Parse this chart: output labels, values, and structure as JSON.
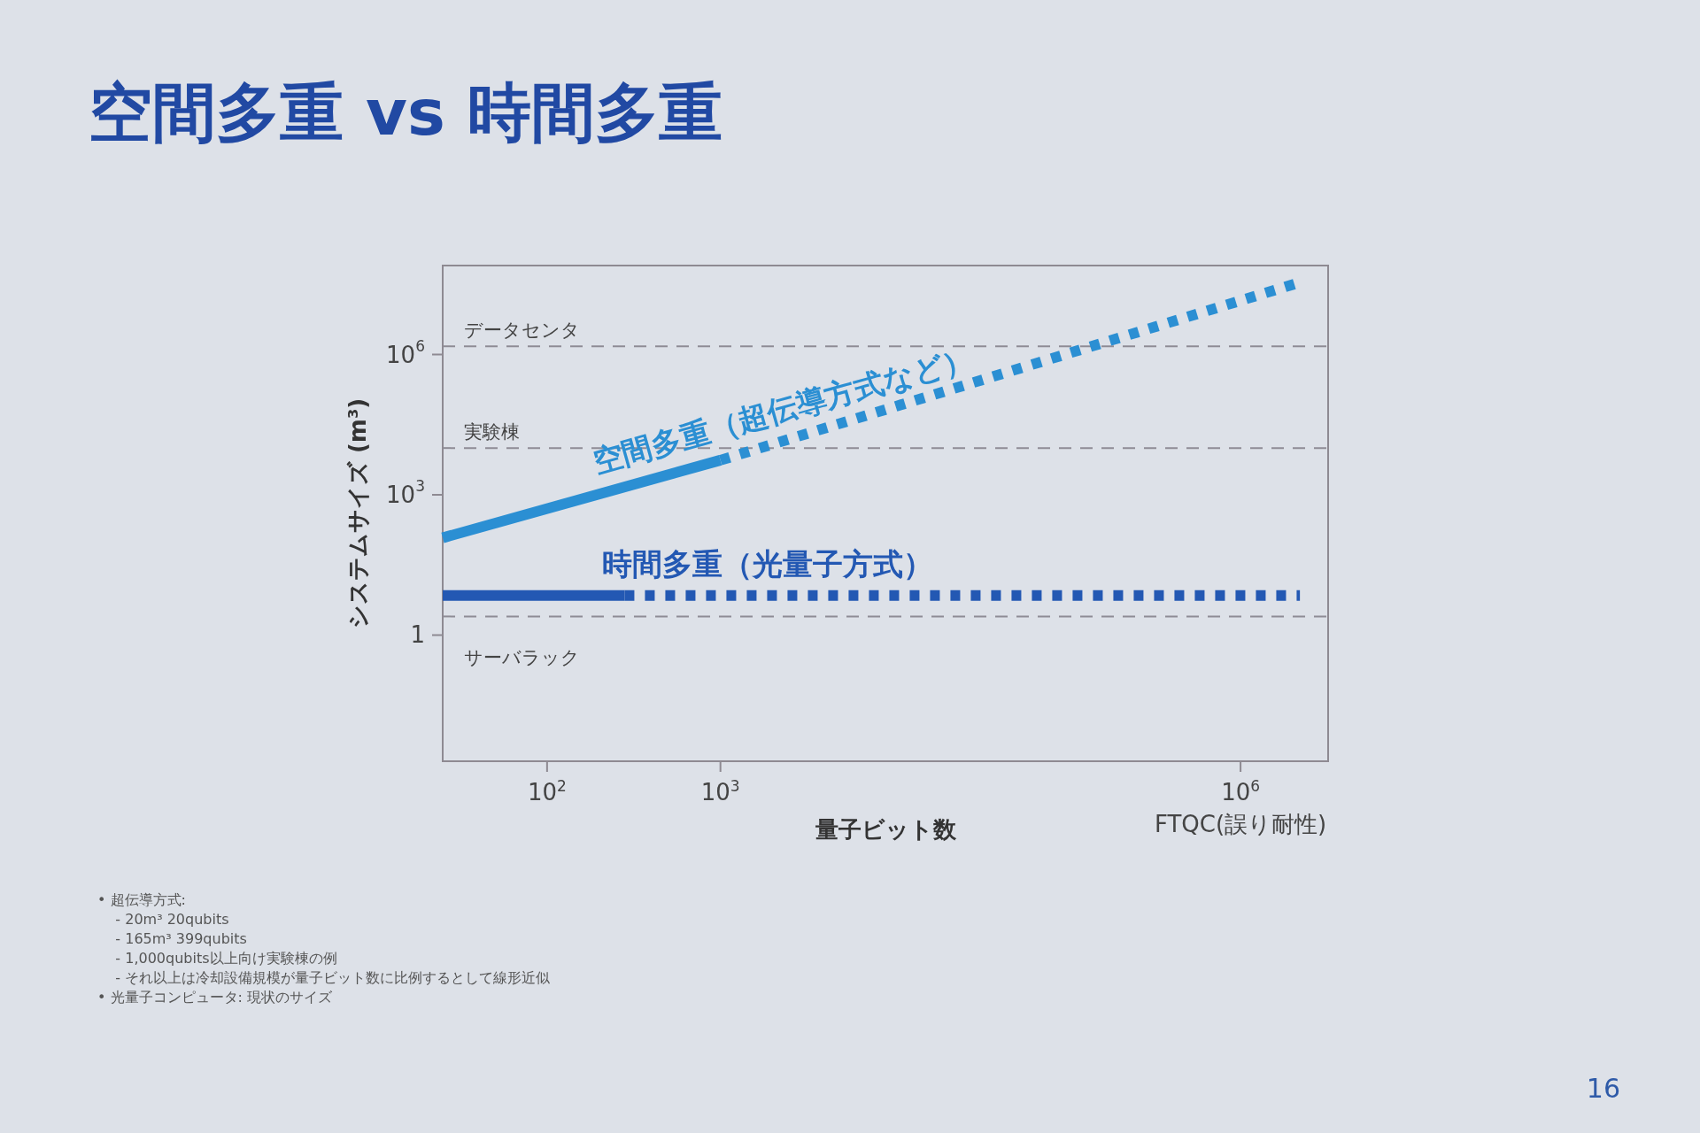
{
  "chart_data": {
    "type": "line",
    "title": "空間多重 vs 時間多重",
    "xlabel": "量子ビット数",
    "ylabel": "システムサイズ (m³)",
    "log": "xy",
    "xlim": [
      25,
      3200000
    ],
    "ylim": [
      0.002,
      80000000
    ],
    "xticks": [
      {
        "value": 100,
        "label": "10$^{2}$"
      },
      {
        "value": 1000,
        "label": "10$^{3}$"
      },
      {
        "value": 1000000,
        "label": "10$^{6}$\nFTQC(誤り耐性)"
      }
    ],
    "yticks": [
      1,
      {
        "value": 1000,
        "label": "10$^{3}$"
      },
      {
        "value": 1000000,
        "label": "10$^{6}$"
      }
    ],
    "series": [
      {
        "name": "空間多重（超伝導方式など）",
        "color": "#2b8fd3",
        "line_style": "solid",
        "x": [
          25,
          1000
        ],
        "values": [
          120,
          5500
        ]
      },
      {
        "color": "#2b8fd3",
        "line_style": "dotted",
        "x": [
          1000,
          2200000
        ],
        "values": [
          5500,
          35000000
        ]
      },
      {
        "name": "時間多重（光量子方式）",
        "color": "#2358b3",
        "line_style": "solid",
        "x": [
          25,
          280
        ],
        "values": [
          7,
          7
        ]
      },
      {
        "color": "#2358b3",
        "line_style": "dotted",
        "x": [
          280,
          2200000
        ],
        "values": [
          7,
          7
        ]
      }
    ],
    "ref_lines": [
      {
        "axis": "y",
        "value": 1500000,
        "label": "データセンタ",
        "color": "#8e8c95",
        "line_style": "dashed"
      },
      {
        "axis": "y",
        "value": 10000,
        "label": "実験棟",
        "color": "#8e8c95",
        "line_style": "dashed"
      },
      {
        "axis": "y",
        "value": 2.5,
        "label": "サーバラック",
        "color": "#8e8c95",
        "line_style": "dashed"
      }
    ],
    "annotations": [
      "• 超伝導方式:",
      "    - 20m³ 20qubits",
      "    - 165m³ 399qubits",
      "    - 1,000qubits以上向け実験棟の例",
      "    - それ以上は冷却設備規模が量子ビット数に比例するとして線形近似",
      "• 光量子コンピュータ: 現状のサイズ",
      "16"
    ]
  }
}
